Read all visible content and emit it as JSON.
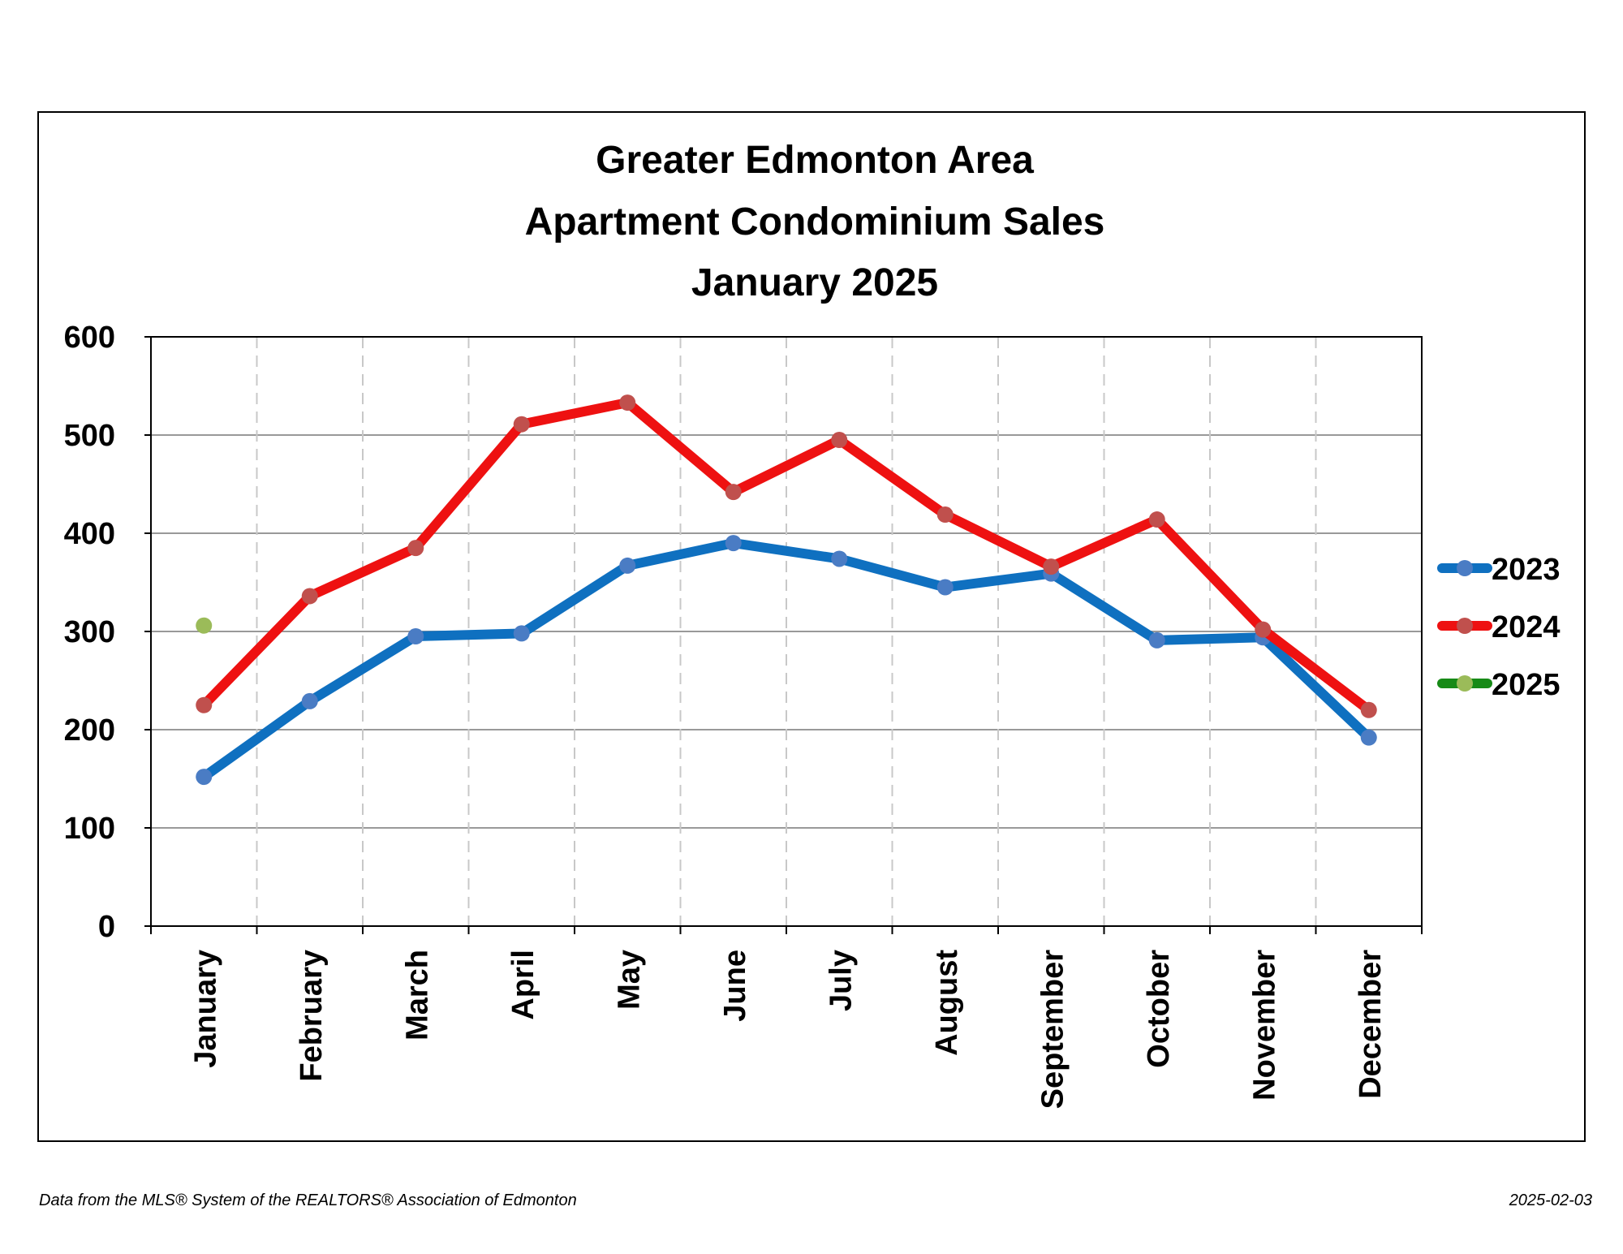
{
  "colors": {
    "s2023_line": "#0f70c0",
    "s2023_marker": "#4a7cc4",
    "s2024_line": "#ee1111",
    "s2024_marker": "#c0504d",
    "s2025_line": "#178a17",
    "s2025_marker": "#9bbb59",
    "gridline": "#999999",
    "vertical_grid": "#c8c8c8"
  },
  "chart_data": {
    "type": "line",
    "title": [
      "Greater Edmonton Area",
      "Apartment Condominium Sales",
      "January 2025"
    ],
    "categories": [
      "January",
      "February",
      "March",
      "April",
      "May",
      "June",
      "July",
      "August",
      "September",
      "October",
      "November",
      "December"
    ],
    "ylim": [
      0,
      600
    ],
    "yticks": [
      0,
      100,
      200,
      300,
      400,
      500,
      600
    ],
    "ytick_labels": [
      "0",
      "100",
      "200",
      "300",
      "400",
      "500",
      "600"
    ],
    "grid": true,
    "legend_position": "right",
    "series": [
      {
        "name": "2023",
        "values": [
          152,
          229,
          295,
          298,
          367,
          390,
          374,
          345,
          359,
          291,
          294,
          192
        ]
      },
      {
        "name": "2024",
        "values": [
          225,
          336,
          385,
          511,
          533,
          442,
          495,
          419,
          366,
          414,
          302,
          220
        ]
      },
      {
        "name": "2025",
        "values": [
          306,
          null,
          null,
          null,
          null,
          null,
          null,
          null,
          null,
          null,
          null,
          null
        ]
      }
    ]
  },
  "footer": {
    "source": "Data from the MLS® System of the REALTORS® Association of Edmonton",
    "date": "2025-02-03"
  }
}
